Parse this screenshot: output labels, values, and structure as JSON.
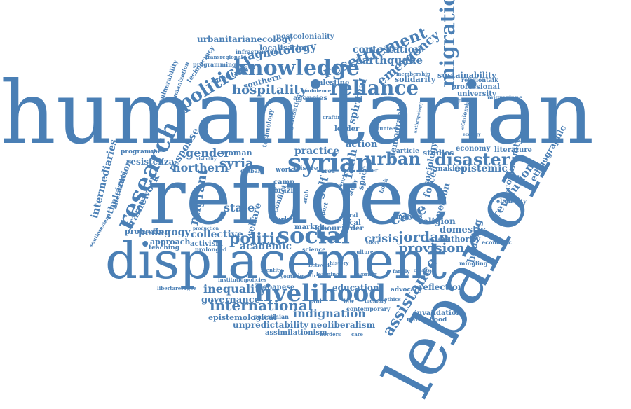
{
  "color": "#4a7fb5",
  "words": {
    "humanitarian": "humanitarian",
    "refugee": "refugee",
    "lebanon": "lebanon",
    "displacement": "displacement",
    "knowledge": "knowledge",
    "syrian": "syrian",
    "reliance": "reliance",
    "migration": "migration",
    "research": "research",
    "livelihood": "livelihood",
    "social": "social",
    "political": "political",
    "resettlement": "resettlement",
    "urban": "urban",
    "disaster": "disaster",
    "hospitality": "hospitality",
    "politic": "politic",
    "jordan": "jordan",
    "indignation": "indignation",
    "assistance": "assistance",
    "emergency": "emergency",
    "agnotology": "agnotology",
    "contestation": "contestation",
    "earthquake": "earthquake",
    "urbanitarianecology": "urbanitarianecology",
    "localisation": "localisation",
    "postcoloniality": "postcoloniality",
    "infrastructure": "infrastructure",
    "programming": "programming",
    "southern": "southern",
    "neutrality": "neutrality",
    "palestine": "palestine",
    "solidarity": "solidarity",
    "professional": "professional",
    "sustainability": "sustainability",
    "religiontalk": "religiontalk",
    "university": "university",
    "migrazione": "migrazione",
    "strategies": "strategies",
    "gender": "gender",
    "syria": "syria",
    "northern": "northern",
    "practice": "practice",
    "response": "response",
    "state": "state",
    "migrant": "migrant",
    "collective": "collective",
    "pedagogy": "pedagogy",
    "approach": "approach",
    "teaching": "teaching",
    "activism": "activism",
    "prolonged": "prolonged",
    "academic": "academic",
    "crisis": "crisis",
    "provision": "provision",
    "domestic": "domestic",
    "authority": "authority",
    "economic": "economic",
    "housing": "housing",
    "revolution": "revolution",
    "epistemic": "epistemic",
    "community": "community",
    "ethnographic": "ethnographic",
    "sociology": "sociology",
    "economy": "economy",
    "literature": "literature",
    "making": "making",
    "eligibility": "eligibility",
    "inequality": "inequality",
    "international": "international",
    "governance": "governance",
    "epistemological": "epistemological",
    "unpredictability": "unpredictability",
    "neoliberalism": "neoliberalism",
    "assimilationism": "assimilationism",
    "palestinian": "palestinian",
    "lebanese": "lebanese",
    "institution": "institution",
    "education": "education",
    "reflection": "reflection",
    "advocacy": "advocacy",
    "invalidation": "invalidation",
    "nationhood": "nationhood",
    "contemporary": "contemporary",
    "intermediaries": "intermediaries",
    "ethnicization": "ethnicization",
    "framework": "framework",
    "protection": "protection",
    "resistenza": "resistenza",
    "programme": "programme",
    "alternative": "alternative",
    "libertarefugee": "libertarefugee",
    "southwestern": "southwestern",
    "woman": "woman",
    "welfare": "welfare",
    "self": "self",
    "faith": "faith",
    "spiritual": "spiritual",
    "leader": "leader",
    "action": "action",
    "demography": "demography",
    "article": "article",
    "studies": "studies",
    "case": "case",
    "person": "person",
    "religion": "religion",
    "forced": "forced",
    "brazil": "brazil",
    "camp": "camp",
    "local": "local",
    "order": "order",
    "turkey": "turkey",
    "market": "market",
    "labour": "labour",
    "conflict": "conflict",
    "science": "science",
    "analysis": "analysis",
    "world": "world",
    "leisure": "leisure",
    "area": "area",
    "global": "global",
    "space": "space",
    "power": "power",
    "agencies": "agencies",
    "technology": "technology",
    "organisation": "organisation",
    "membership": "membership",
    "transregional": "transregional",
    "technocracy": "technocracy",
    "vulnerability": "vulnerability",
    "humanization": "humanization",
    "crafting": "crafting",
    "confidence": "confidence",
    "policies": "policies",
    "learning": "learning",
    "academia": "academia",
    "production": "production",
    "mingling": "mingling",
    "stanford": "stanford",
    "rural": "rural",
    "work": "work",
    "study": "study",
    "relief": "relief",
    "sport": "sport",
    "effort": "effort",
    "culture": "culture",
    "arab": "arab",
    "book": "book",
    "volunteer": "volunteer",
    "anthropology": "anthropology",
    "visibility": "visibility",
    "ecology": "ecology",
    "identity": "identity",
    "network": "network",
    "history": "history",
    "worker": "worker",
    "family": "family",
    "charity": "charity",
    "youth": "youth",
    "health": "health",
    "law": "law",
    "memory": "memory",
    "ethics": "ethics",
    "aid": "aid",
    "borders": "borders",
    "care": "care"
  }
}
